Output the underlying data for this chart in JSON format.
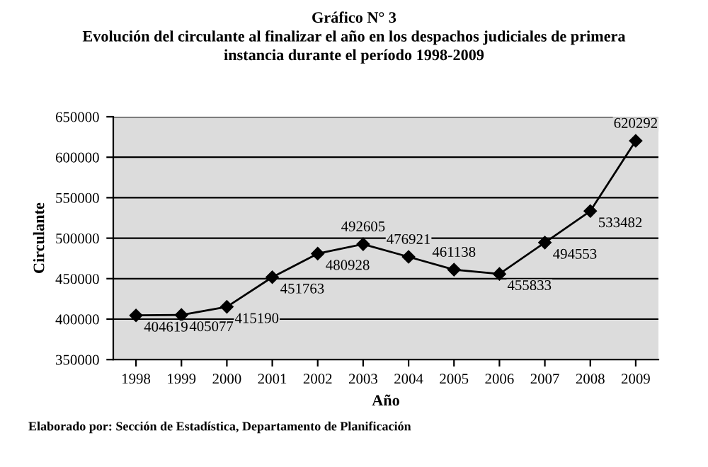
{
  "chart_data": {
    "type": "line",
    "title": "Gráfico N° 3\nEvolución del circulante al finalizar el año en los despachos judiciales de primera\ninstancia durante el período 1998-2009",
    "xlabel": "Año",
    "ylabel": "Circulante",
    "categories": [
      "1998",
      "1999",
      "2000",
      "2001",
      "2002",
      "2003",
      "2004",
      "2005",
      "2006",
      "2007",
      "2008",
      "2009"
    ],
    "series": [
      {
        "color": "#000000",
        "values": [
          404619,
          405077,
          415190,
          451763,
          480928,
          492605,
          476921,
          461138,
          455833,
          494553,
          533482,
          620292
        ]
      }
    ],
    "ylim": [
      350000,
      650000
    ],
    "yticks": [
      350000,
      400000,
      450000,
      500000,
      550000,
      600000,
      650000
    ],
    "grid": "y",
    "marker": "diamond",
    "line_style": "solid",
    "data_labels": true,
    "annotations": [
      "Elaborado por: Sección de Estadística, Departamento de Planificación"
    ]
  }
}
